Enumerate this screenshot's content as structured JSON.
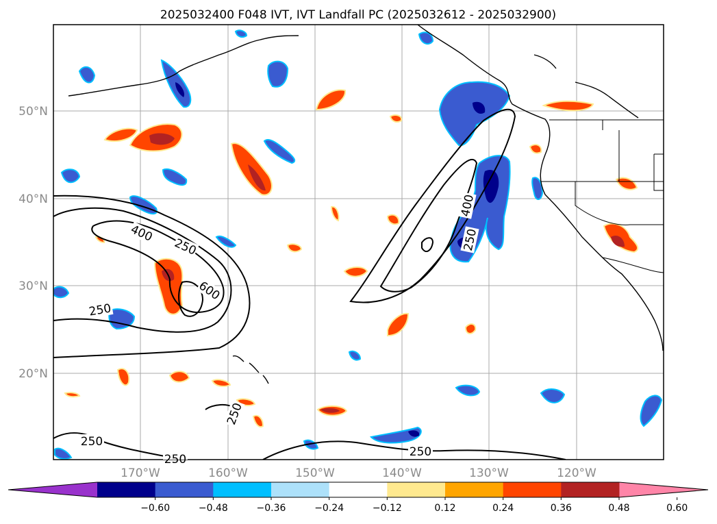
{
  "title": "2025032400 F048 IVT, IVT Landfall PC (2025032612 - 2025032900)",
  "map": {
    "lat_labels": [
      "50°N",
      "40°N",
      "30°N",
      "20°N"
    ],
    "lon_labels": [
      "170°W",
      "160°W",
      "150°W",
      "140°W",
      "130°W",
      "120°W"
    ],
    "contour_labels": [
      "400",
      "250",
      "600",
      "250",
      "250",
      "250",
      "250",
      "250",
      "400",
      "250"
    ],
    "gridlines": true
  },
  "colorbar": {
    "ticks": [
      "−0.60",
      "−0.48",
      "−0.36",
      "−0.24",
      "−0.12",
      "0.12",
      "0.24",
      "0.36",
      "0.48",
      "0.60"
    ],
    "colors": [
      "#9932cc",
      "#00008b",
      "#3a5bd0",
      "#00bfff",
      "#ade1fa",
      "#ffffff",
      "#ffe98f",
      "#ffa500",
      "#ff4500",
      "#b22222",
      "#ff85a8"
    ]
  },
  "colors": {
    "positive_dark": "#b22222",
    "positive_mid": "#ff4500",
    "positive_light": "#ffa500",
    "negative_dark": "#00008b",
    "negative_mid": "#3a5bd0",
    "negative_light": "#00bfff",
    "contour": "#000000"
  }
}
